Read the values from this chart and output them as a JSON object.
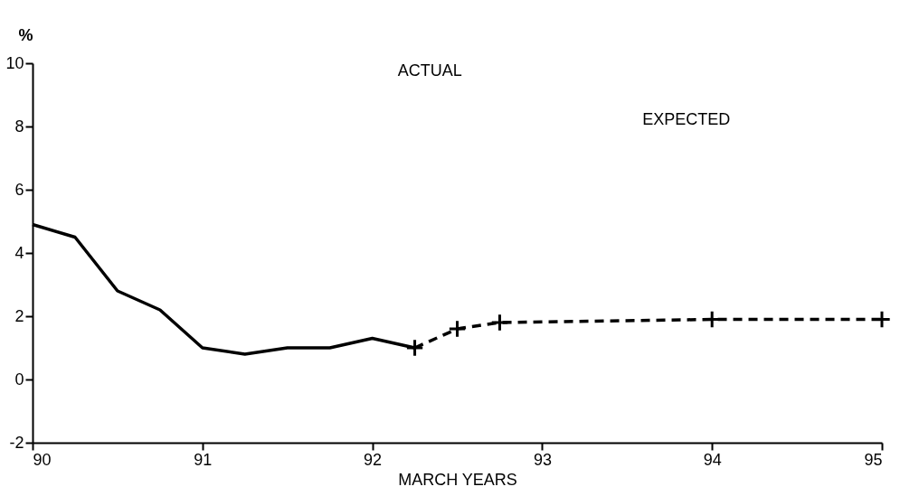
{
  "chart_data": {
    "type": "line",
    "xlabel": "MARCH YEARS",
    "ylabel": "%",
    "xlim": [
      90,
      95
    ],
    "ylim": [
      -2,
      10
    ],
    "xticks": [
      90,
      91,
      92,
      93,
      94,
      95
    ],
    "yticks": [
      -2,
      0,
      2,
      4,
      6,
      8,
      10
    ],
    "grid": false,
    "series": [
      {
        "color": "#000000",
        "line_style": "solid",
        "marker": "none",
        "x": [
          90,
          90.25,
          90.5,
          90.75,
          91,
          91.25,
          91.5,
          91.75,
          92,
          92.25
        ],
        "values": [
          4.9,
          4.5,
          2.8,
          2.2,
          1.0,
          0.8,
          1.0,
          1.0,
          1.3,
          1.0
        ]
      },
      {
        "color": "#000000",
        "line_style": "dashed",
        "marker": "cross",
        "x": [
          92.25,
          92.5,
          92.75,
          94,
          95
        ],
        "values": [
          1.0,
          1.6,
          1.8,
          1.9,
          1.9
        ]
      }
    ],
    "annotations": [
      "ACTUAL",
      "EXPECTED"
    ]
  }
}
